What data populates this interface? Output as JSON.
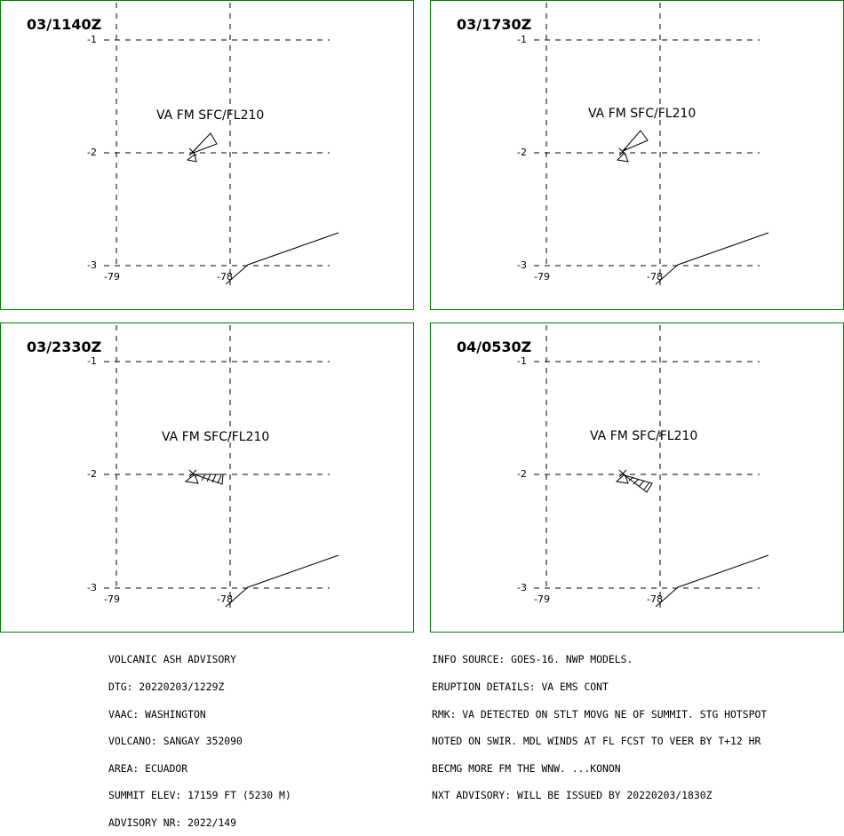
{
  "panels": [
    {
      "time": "03/1140Z",
      "ash_label": "VA FM SFC/FL210"
    },
    {
      "time": "03/1730Z",
      "ash_label": "VA FM SFC/FL210"
    },
    {
      "time": "03/2330Z",
      "ash_label": "VA FM SFC/FL210"
    },
    {
      "time": "04/0530Z",
      "ash_label": "VA FM SFC/FL210"
    }
  ],
  "axis": {
    "lat_labels": [
      "-1",
      "-2",
      "-3"
    ],
    "lon_labels": [
      "-79",
      "-78"
    ]
  },
  "advisory_left": [
    "VOLCANIC ASH ADVISORY",
    "DTG: 20220203/1229Z",
    "VAAC: WASHINGTON",
    "VOLCANO: SANGAY 352090",
    "AREA: ECUADOR",
    "SUMMIT ELEV: 17159 FT (5230 M)",
    "ADVISORY NR: 2022/149"
  ],
  "advisory_right": [
    "INFO SOURCE: GOES-16. NWP MODELS.",
    "ERUPTION DETAILS: VA EMS CONT",
    "RMK: VA DETECTED ON STLT MOVG NE OF SUMMIT. STG HOTSPOT",
    "NOTED ON SWIR. MDL WINDS AT FL FCST TO VEER BY T+12 HR",
    "BECMG MORE FM THE WNW. ...KONON",
    "NXT ADVISORY: WILL BE ISSUED BY 20220203/1830Z"
  ],
  "colors": {
    "border": "#008000",
    "lines": "#000000"
  }
}
